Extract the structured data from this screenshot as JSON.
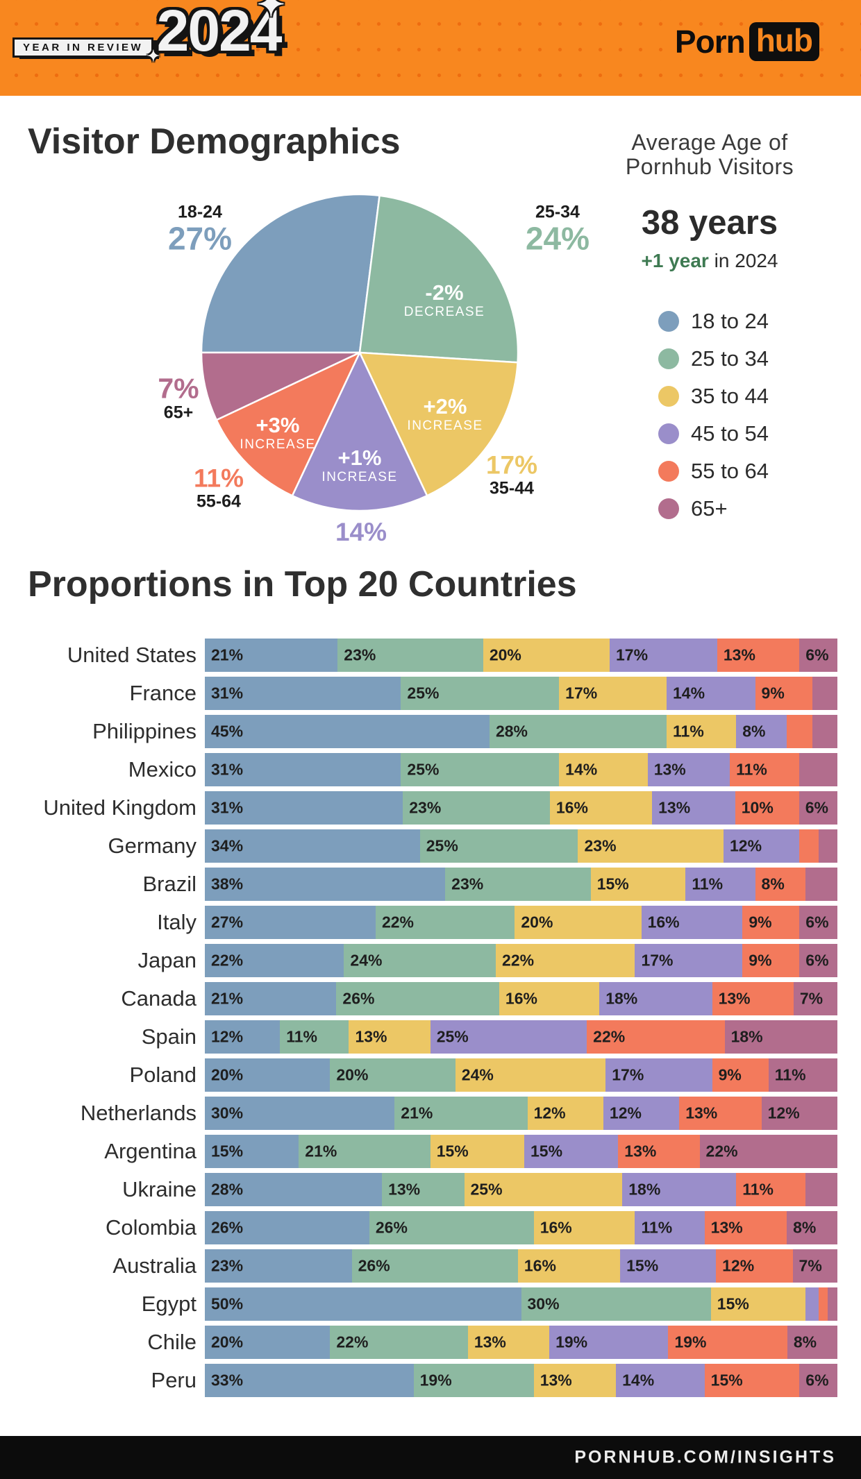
{
  "colors": {
    "header_bg": "#f8871f",
    "header_dot": "#ee6c0f",
    "footer_bg": "#0c0c0c",
    "text_dark": "#2d2d2d",
    "accent_green": "#3e7a52",
    "white": "#ffffff",
    "age_groups": [
      "#7d9ebc",
      "#8db9a1",
      "#ecc765",
      "#9a8eca",
      "#f37a5c",
      "#b26d8d"
    ]
  },
  "header": {
    "badge_text": "YEAR IN REVIEW",
    "badge_year": "2024",
    "sparkle_icon": "✦",
    "brand_porn": "Porn",
    "brand_hub": "hub"
  },
  "demographics": {
    "title": "Visitor Demographics",
    "average": {
      "heading_line1": "Average Age of",
      "heading_line2": "Pornhub Visitors",
      "value": "38 years",
      "change": "+1 year",
      "suffix": " in 2024"
    },
    "legend": [
      {
        "label": "18 to 24"
      },
      {
        "label": "25 to 34"
      },
      {
        "label": "35 to 44"
      },
      {
        "label": "45 to 54"
      },
      {
        "label": "55 to 64"
      },
      {
        "label": "65+"
      }
    ]
  },
  "chart_data": [
    {
      "type": "pie",
      "title": "Visitor Demographics — age share of visitors",
      "start_angle_deg": 270,
      "direction": "clockwise",
      "slices": [
        {
          "label": "18-24",
          "value": 27,
          "display": "27%",
          "change": "",
          "change_word": ""
        },
        {
          "label": "25-34",
          "value": 24,
          "display": "24%",
          "change": "-2%",
          "change_word": "DECREASE"
        },
        {
          "label": "35-44",
          "value": 17,
          "display": "17%",
          "change": "+2%",
          "change_word": "INCREASE"
        },
        {
          "label": "45-54",
          "value": 14,
          "display": "14%",
          "change": "+1%",
          "change_word": "INCREASE"
        },
        {
          "label": "55-64",
          "value": 11,
          "display": "11%",
          "change": "+3%",
          "change_word": "INCREASE"
        },
        {
          "label": "65+",
          "value": 7,
          "display": "7%",
          "change": "",
          "change_word": ""
        }
      ]
    },
    {
      "type": "bar",
      "stacked": true,
      "title": "Proportions in Top 20 Countries",
      "unit": "%",
      "xlim": [
        0,
        100
      ],
      "categories": [
        "18-24",
        "25-34",
        "35-44",
        "45-54",
        "55-64",
        "65+"
      ],
      "rows": [
        {
          "country": "United States",
          "values": [
            21,
            23,
            20,
            17,
            13,
            6
          ],
          "labels": [
            "21%",
            "23%",
            "20%",
            "17%",
            "13%",
            "6%"
          ]
        },
        {
          "country": "France",
          "values": [
            31,
            25,
            17,
            14,
            9,
            4
          ],
          "labels": [
            "31%",
            "25%",
            "17%",
            "14%",
            "9%",
            ""
          ]
        },
        {
          "country": "Philippines",
          "values": [
            45,
            28,
            11,
            8,
            4,
            4
          ],
          "labels": [
            "45%",
            "28%",
            "11%",
            "8%",
            "",
            ""
          ]
        },
        {
          "country": "Mexico",
          "values": [
            31,
            25,
            14,
            13,
            11,
            6
          ],
          "labels": [
            "31%",
            "25%",
            "14%",
            "13%",
            "11%",
            ""
          ]
        },
        {
          "country": "United Kingdom",
          "values": [
            31,
            23,
            16,
            13,
            10,
            6
          ],
          "labels": [
            "31%",
            "23%",
            "16%",
            "13%",
            "10%",
            "6%"
          ]
        },
        {
          "country": "Germany",
          "values": [
            34,
            25,
            23,
            12,
            3,
            3
          ],
          "labels": [
            "34%",
            "25%",
            "23%",
            "12%",
            "",
            ""
          ]
        },
        {
          "country": "Brazil",
          "values": [
            38,
            23,
            15,
            11,
            8,
            5
          ],
          "labels": [
            "38%",
            "23%",
            "15%",
            "11%",
            "8%",
            ""
          ]
        },
        {
          "country": "Italy",
          "values": [
            27,
            22,
            20,
            16,
            9,
            6
          ],
          "labels": [
            "27%",
            "22%",
            "20%",
            "16%",
            "9%",
            "6%"
          ]
        },
        {
          "country": "Japan",
          "values": [
            22,
            24,
            22,
            17,
            9,
            6
          ],
          "labels": [
            "22%",
            "24%",
            "22%",
            "17%",
            "9%",
            "6%"
          ]
        },
        {
          "country": "Canada",
          "values": [
            21,
            26,
            16,
            18,
            13,
            7
          ],
          "labels": [
            "21%",
            "26%",
            "16%",
            "18%",
            "13%",
            "7%"
          ]
        },
        {
          "country": "Spain",
          "values": [
            12,
            11,
            13,
            25,
            22,
            18
          ],
          "labels": [
            "12%",
            "11%",
            "13%",
            "25%",
            "22%",
            "18%"
          ]
        },
        {
          "country": "Poland",
          "values": [
            20,
            20,
            24,
            17,
            9,
            11
          ],
          "labels": [
            "20%",
            "20%",
            "24%",
            "17%",
            "9%",
            "11%"
          ]
        },
        {
          "country": "Netherlands",
          "values": [
            30,
            21,
            12,
            12,
            13,
            12
          ],
          "labels": [
            "30%",
            "21%",
            "12%",
            "12%",
            "13%",
            "12%"
          ]
        },
        {
          "country": "Argentina",
          "values": [
            15,
            21,
            15,
            15,
            13,
            22
          ],
          "labels": [
            "15%",
            "21%",
            "15%",
            "15%",
            "13%",
            "22%"
          ]
        },
        {
          "country": "Ukraine",
          "values": [
            28,
            13,
            25,
            18,
            11,
            5
          ],
          "labels": [
            "28%",
            "13%",
            "25%",
            "18%",
            "11%",
            ""
          ]
        },
        {
          "country": "Colombia",
          "values": [
            26,
            26,
            16,
            11,
            13,
            8
          ],
          "labels": [
            "26%",
            "26%",
            "16%",
            "11%",
            "13%",
            "8%"
          ]
        },
        {
          "country": "Australia",
          "values": [
            23,
            26,
            16,
            15,
            12,
            7
          ],
          "labels": [
            "23%",
            "26%",
            "16%",
            "15%",
            "12%",
            "7%"
          ]
        },
        {
          "country": "Egypt",
          "values": [
            50,
            30,
            15,
            2,
            1.5,
            1.5
          ],
          "labels": [
            "50%",
            "30%",
            "15%",
            "",
            "",
            ""
          ]
        },
        {
          "country": "Chile",
          "values": [
            20,
            22,
            13,
            19,
            19,
            8
          ],
          "labels": [
            "20%",
            "22%",
            "13%",
            "19%",
            "19%",
            "8%"
          ]
        },
        {
          "country": "Peru",
          "values": [
            33,
            19,
            13,
            14,
            15,
            6
          ],
          "labels": [
            "33%",
            "19%",
            "13%",
            "14%",
            "15%",
            "6%"
          ]
        }
      ]
    }
  ],
  "footer": {
    "text": "PORNHUB.COM/INSIGHTS"
  }
}
